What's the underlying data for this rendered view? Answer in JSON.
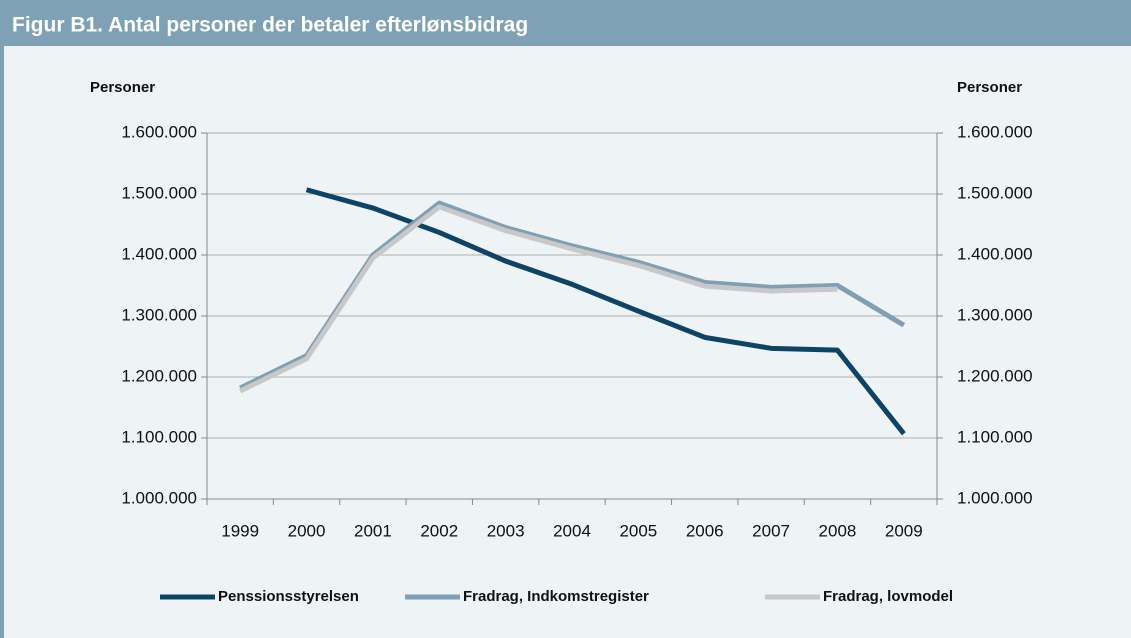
{
  "chart_data": {
    "type": "line",
    "title": "Figur B1. Antal personer der betaler efterlønsbidrag",
    "ylabel": "Personer",
    "y2label": "Personer",
    "categories": [
      "1999",
      "2000",
      "2001",
      "2002",
      "2003",
      "2004",
      "2005",
      "2006",
      "2007",
      "2008",
      "2009"
    ],
    "series": [
      {
        "name": "Penssionsstyrelsen",
        "color": "#0d4466",
        "values": [
          null,
          1507000,
          1477000,
          1437000,
          1390000,
          1352000,
          1308000,
          1265000,
          1247000,
          1244000,
          1107000
        ]
      },
      {
        "name": "Fradrag, Indkomstregister",
        "color": "#7f9fb3",
        "values": [
          1182000,
          1235000,
          1400000,
          1485000,
          1445000,
          1415000,
          1388000,
          1355000,
          1347000,
          1350000,
          1285000
        ]
      },
      {
        "name": "Fradrag, lovmodel",
        "color": "#c8c8c8",
        "values": [
          1177000,
          1230000,
          1395000,
          1479000,
          1440000,
          1410000,
          1383000,
          1349000,
          1341000,
          1344000,
          null
        ]
      }
    ],
    "ylim": [
      1000000,
      1600000
    ],
    "yticks": [
      {
        "value": 1000000,
        "label": "1.000.000"
      },
      {
        "value": 1100000,
        "label": "1.100.000"
      },
      {
        "value": 1200000,
        "label": "1.200.000"
      },
      {
        "value": 1300000,
        "label": "1.300.000"
      },
      {
        "value": 1400000,
        "label": "1.400.000"
      },
      {
        "value": 1500000,
        "label": "1.500.000"
      },
      {
        "value": 1600000,
        "label": "1.600.000"
      }
    ],
    "y2lim": [
      1000000,
      1600000
    ],
    "y2ticks": [
      {
        "value": 1000000,
        "label": "1.000.000"
      },
      {
        "value": 1100000,
        "label": "1.100.000"
      },
      {
        "value": 1200000,
        "label": "1.200.000"
      },
      {
        "value": 1300000,
        "label": "1.300.000"
      },
      {
        "value": 1400000,
        "label": "1.400.000"
      },
      {
        "value": 1500000,
        "label": "1.500.000"
      },
      {
        "value": 1600000,
        "label": "1.600.000"
      }
    ],
    "grid": true,
    "legend": "bottom"
  }
}
